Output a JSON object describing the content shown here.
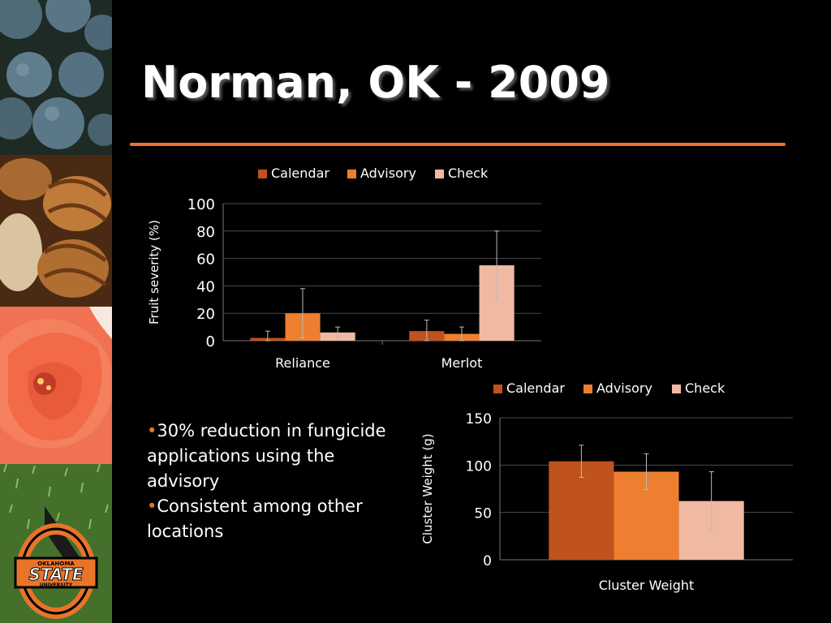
{
  "slide": {
    "title": "Norman, OK - 2009",
    "bullets": [
      {
        "marker": "•",
        "text": "30% reduction in fungicide applications using the advisory"
      },
      {
        "marker": "•",
        "text": "Consistent among other locations"
      }
    ],
    "logo": {
      "top": "OKLAHOMA",
      "main": "STATE",
      "bottom": "UNIVERSITY"
    }
  },
  "colors": {
    "Calendar": "#c0521e",
    "Advisory": "#ee7f30",
    "Check": "#f0b9a2",
    "accent": "#e8742a"
  },
  "chart_data": [
    {
      "type": "bar",
      "title": "",
      "categories": [
        "Reliance",
        "Merlot"
      ],
      "series": [
        {
          "name": "Calendar",
          "values": [
            2,
            7
          ],
          "error": [
            5,
            8
          ]
        },
        {
          "name": "Advisory",
          "values": [
            20,
            5
          ],
          "error": [
            18,
            5
          ]
        },
        {
          "name": "Check",
          "values": [
            6,
            55
          ],
          "error": [
            4,
            25
          ]
        }
      ],
      "xlabel": "",
      "ylabel": "Fruit severity (%)",
      "ylim": [
        0,
        100
      ],
      "yticks": [
        "0",
        "20",
        "40",
        "60",
        "80",
        "100"
      ],
      "legend": "top",
      "grid": true
    },
    {
      "type": "bar",
      "title": "",
      "categories": [
        "Cluster Weight"
      ],
      "series": [
        {
          "name": "Calendar",
          "values": [
            104
          ],
          "error": [
            17
          ]
        },
        {
          "name": "Advisory",
          "values": [
            93
          ],
          "error": [
            19
          ]
        },
        {
          "name": "Check",
          "values": [
            62
          ],
          "error": [
            31
          ]
        }
      ],
      "xlabel": "",
      "ylabel": "Cluster Weight (g)",
      "ylim": [
        0,
        150
      ],
      "yticks": [
        "0",
        "50",
        "100",
        "150"
      ],
      "legend": "top",
      "grid": true
    }
  ]
}
